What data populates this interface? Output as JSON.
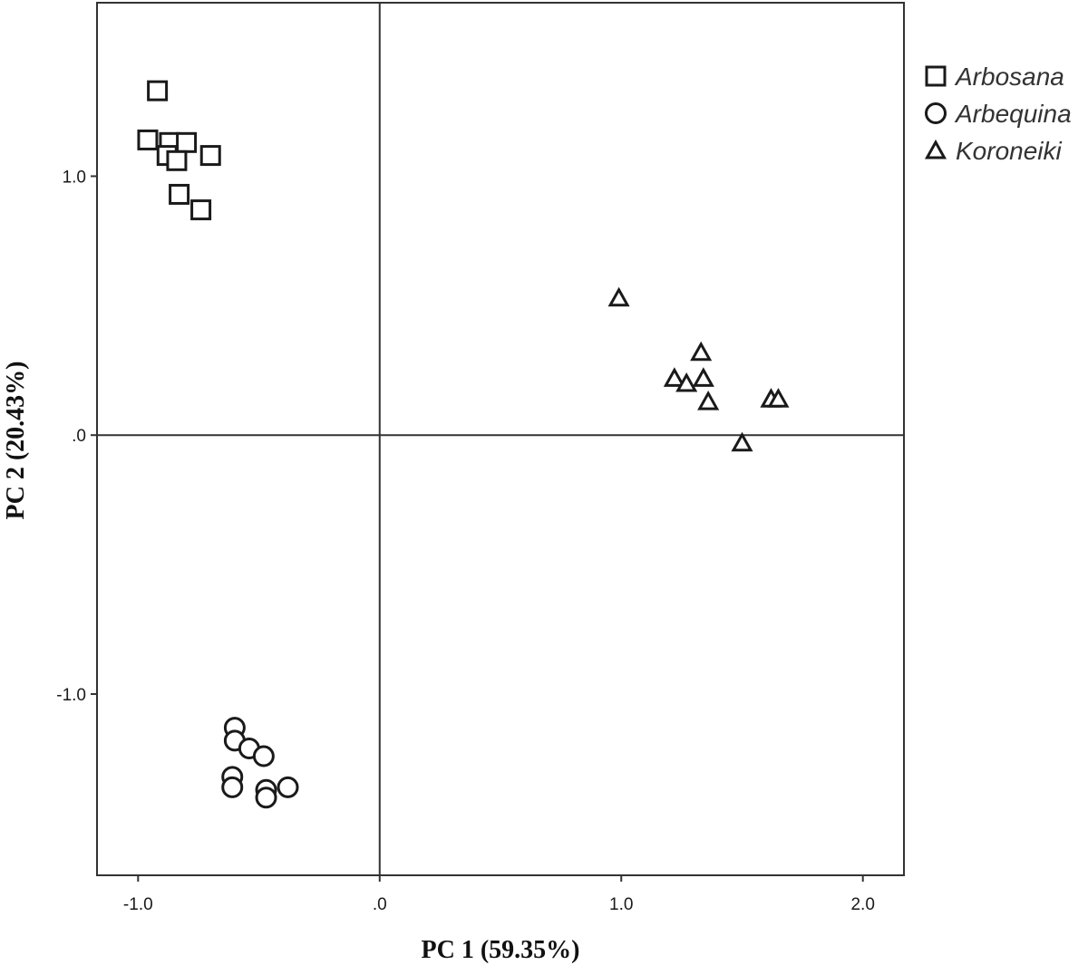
{
  "chart_data": {
    "type": "scatter",
    "title": "",
    "xlabel": "PC 1 (59.35%)",
    "ylabel": "PC 2 (20.43%)",
    "xlim": [
      -1.17,
      2.17
    ],
    "ylim": [
      -1.7,
      1.67
    ],
    "x_ticks": [
      -1.0,
      0.0,
      1.0,
      2.0
    ],
    "x_tick_labels": [
      "-1.0",
      ".0",
      "1.0",
      "2.0"
    ],
    "y_ticks": [
      1.0,
      0.0,
      -1.0
    ],
    "y_tick_labels": [
      "1.0",
      ".0",
      "-1.0"
    ],
    "reference_lines": {
      "x": 0,
      "y": 0
    },
    "grid": false,
    "legend_position": "top-right, outside plot",
    "series": [
      {
        "name": "Arbosana",
        "marker": "square",
        "points": [
          [
            -0.92,
            1.33
          ],
          [
            -0.96,
            1.14
          ],
          [
            -0.87,
            1.13
          ],
          [
            -0.8,
            1.13
          ],
          [
            -0.88,
            1.08
          ],
          [
            -0.84,
            1.06
          ],
          [
            -0.7,
            1.08
          ],
          [
            -0.83,
            0.93
          ],
          [
            -0.74,
            0.87
          ]
        ]
      },
      {
        "name": "Arbequina",
        "marker": "circle",
        "points": [
          [
            -0.6,
            -1.13
          ],
          [
            -0.6,
            -1.18
          ],
          [
            -0.54,
            -1.21
          ],
          [
            -0.48,
            -1.24
          ],
          [
            -0.61,
            -1.32
          ],
          [
            -0.61,
            -1.36
          ],
          [
            -0.47,
            -1.37
          ],
          [
            -0.47,
            -1.4
          ],
          [
            -0.38,
            -1.36
          ]
        ]
      },
      {
        "name": "Koroneiki",
        "marker": "triangle",
        "points": [
          [
            0.99,
            0.53
          ],
          [
            1.33,
            0.32
          ],
          [
            1.22,
            0.22
          ],
          [
            1.27,
            0.2
          ],
          [
            1.34,
            0.22
          ],
          [
            1.36,
            0.13
          ],
          [
            1.62,
            0.14
          ],
          [
            1.65,
            0.14
          ],
          [
            1.5,
            -0.03
          ]
        ]
      }
    ]
  }
}
